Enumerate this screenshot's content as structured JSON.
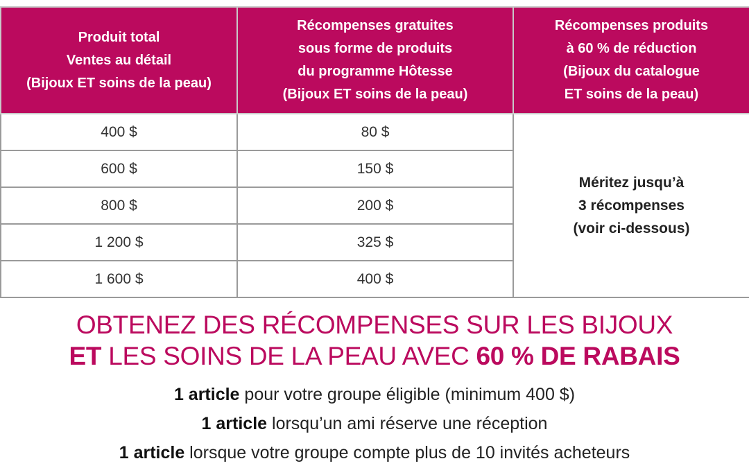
{
  "table": {
    "headers": [
      [
        "Produit total",
        "Ventes au détail",
        "(Bijoux ET soins de la peau)"
      ],
      [
        "Récompenses gratuites",
        "sous forme de produits",
        "du programme Hôtesse",
        "(Bijoux ET soins de la peau)"
      ],
      [
        "Récompenses produits",
        "à 60 % de réduction",
        "(Bijoux du catalogue",
        "ET soins de la peau)"
      ]
    ],
    "rows": [
      [
        "400 $",
        "80 $"
      ],
      [
        "600 $",
        "150 $"
      ],
      [
        "800 $",
        "200 $"
      ],
      [
        "1 200 $",
        "325 $"
      ],
      [
        "1 600 $",
        "400 $"
      ]
    ],
    "merged_cell": [
      "Méritez jusqu’à",
      "3 récompenses",
      "(voir ci-dessous)"
    ]
  },
  "headline": {
    "line1": "OBTENEZ DES RÉCOMPENSES SUR LES BIJOUX",
    "line2_bold_start": "ET",
    "line2_middle": " LES SOINS DE LA PEAU AVEC ",
    "line2_bold_end": "60 % DE RABAIS"
  },
  "items": [
    {
      "bold": "1 article",
      "text": " pour votre groupe éligible (minimum 400 $)"
    },
    {
      "bold": "1 article",
      "text": " lorsqu’un ami réserve une réception"
    },
    {
      "bold": "1 article",
      "text": " lorsque votre groupe compte plus de 10 invités acheteurs"
    }
  ],
  "colors": {
    "accent": "#bb0a5e"
  }
}
